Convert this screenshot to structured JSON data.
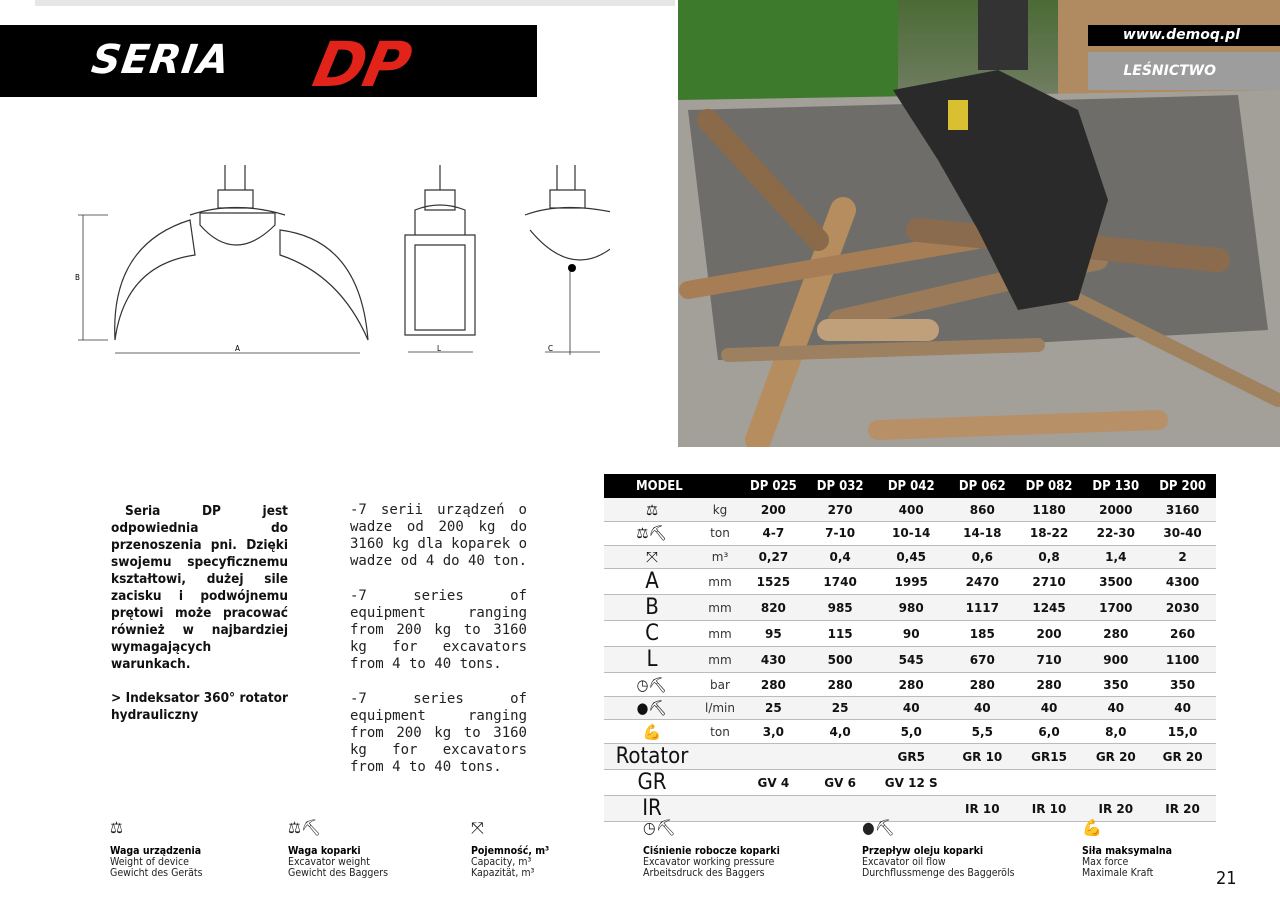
{
  "header": {
    "series_word": "SERIA",
    "series_code": "DP"
  },
  "banner": {
    "url": "www.demoq.pl",
    "section": "LEŚNICTWO"
  },
  "drawing": {
    "dim_a": "A",
    "dim_b": "B",
    "dim_l": "L",
    "dim_c": "C"
  },
  "description_pl": {
    "paragraph": "Seria DP jest odpowiednia do przenoszenia pni. Dzięki swojemu specyficznemu kształtowi, dużej sile zacisku i podwójnemu prętowi może pracować również w najbardziej wymagających warunkach.",
    "feature": "> Indeksator 360° rotator hydrauliczny"
  },
  "description_multi": [
    "-7 serii urządzeń o wadze od 200 kg do 3160 kg dla koparek o wadze od 4 do 40 ton.",
    "-7 series of equipment ranging from 200 kg to 3160 kg for excavators from 4 to 40 tons.",
    "-7 series of equipment ranging from 200 kg to 3160 kg for excavators from 4 to 40 tons."
  ],
  "table": {
    "header": "MODEL",
    "models": [
      "DP 025",
      "DP 032",
      "DP 042",
      "DP 062",
      "DP 082",
      "DP 130",
      "DP 200"
    ],
    "rows": [
      {
        "icon": "weight-icon",
        "label": "",
        "unit": "kg",
        "values": [
          "200",
          "270",
          "400",
          "860",
          "1180",
          "2000",
          "3160"
        ]
      },
      {
        "icon": "excavator-weight-icon",
        "label": "",
        "unit": "ton",
        "values": [
          "4-7",
          "7-10",
          "10-14",
          "14-18",
          "18-22",
          "22-30",
          "30-40"
        ]
      },
      {
        "icon": "capacity-icon",
        "label": "",
        "unit": "m³",
        "values": [
          "0,27",
          "0,4",
          "0,45",
          "0,6",
          "0,8",
          "1,4",
          "2"
        ]
      },
      {
        "icon": "",
        "label": "A",
        "unit": "mm",
        "values": [
          "1525",
          "1740",
          "1995",
          "2470",
          "2710",
          "3500",
          "4300"
        ]
      },
      {
        "icon": "",
        "label": "B",
        "unit": "mm",
        "values": [
          "820",
          "985",
          "980",
          "1117",
          "1245",
          "1700",
          "2030"
        ]
      },
      {
        "icon": "",
        "label": "C",
        "unit": "mm",
        "values": [
          "95",
          "115",
          "90",
          "185",
          "200",
          "280",
          "260"
        ]
      },
      {
        "icon": "",
        "label": "L",
        "unit": "mm",
        "values": [
          "430",
          "500",
          "545",
          "670",
          "710",
          "900",
          "1100"
        ]
      },
      {
        "icon": "pressure-gauge-icon",
        "label": "",
        "unit": "bar",
        "values": [
          "280",
          "280",
          "280",
          "280",
          "280",
          "350",
          "350"
        ]
      },
      {
        "icon": "oil-drop-icon",
        "label": "",
        "unit": "l/min",
        "values": [
          "25",
          "25",
          "40",
          "40",
          "40",
          "40",
          "40"
        ]
      },
      {
        "icon": "muscle-icon",
        "label": "",
        "unit": "ton",
        "values": [
          "3,0",
          "4,0",
          "5,0",
          "5,5",
          "6,0",
          "8,0",
          "15,0"
        ]
      },
      {
        "icon": "",
        "label": "Rotator",
        "unit": "",
        "values": [
          "",
          "",
          "GR5",
          "GR 10",
          "GR15",
          "GR 20",
          "GR 20"
        ]
      },
      {
        "icon": "",
        "label": "GR",
        "unit": "",
        "values": [
          "GV 4",
          "GV 6",
          "GV 12 S",
          "",
          "",
          "",
          ""
        ]
      },
      {
        "icon": "",
        "label": "IR",
        "unit": "",
        "values": [
          "",
          "",
          "",
          "IR 10",
          "IR 10",
          "IR 20",
          "IR 20"
        ]
      }
    ]
  },
  "legend": [
    {
      "icon": "weight-icon",
      "title": "Waga urządzenia",
      "en": "Weight of device",
      "de": "Gewicht des Geräts"
    },
    {
      "icon": "excavator-weight-icon",
      "title": "Waga koparki",
      "en": "Excavator weight",
      "de": "Gewicht des Baggers"
    },
    {
      "icon": "capacity-icon",
      "title": "Pojemność, m³",
      "en": "Capacity, m³",
      "de": "Kapazität, m³"
    },
    {
      "icon": "pressure-gauge-icon",
      "title": "Ciśnienie robocze koparki",
      "en": "Excavator working pressure",
      "de": "Arbeitsdruck des Baggers"
    },
    {
      "icon": "oil-drop-icon",
      "title": "Przepływ oleju koparki",
      "en": "Excavator oil flow",
      "de": "Durchflussmenge des Baggeröls"
    },
    {
      "icon": "muscle-icon",
      "title": "Siła maksymalna",
      "en": "Max force",
      "de": "Maximale Kraft"
    }
  ],
  "page_number": "21"
}
